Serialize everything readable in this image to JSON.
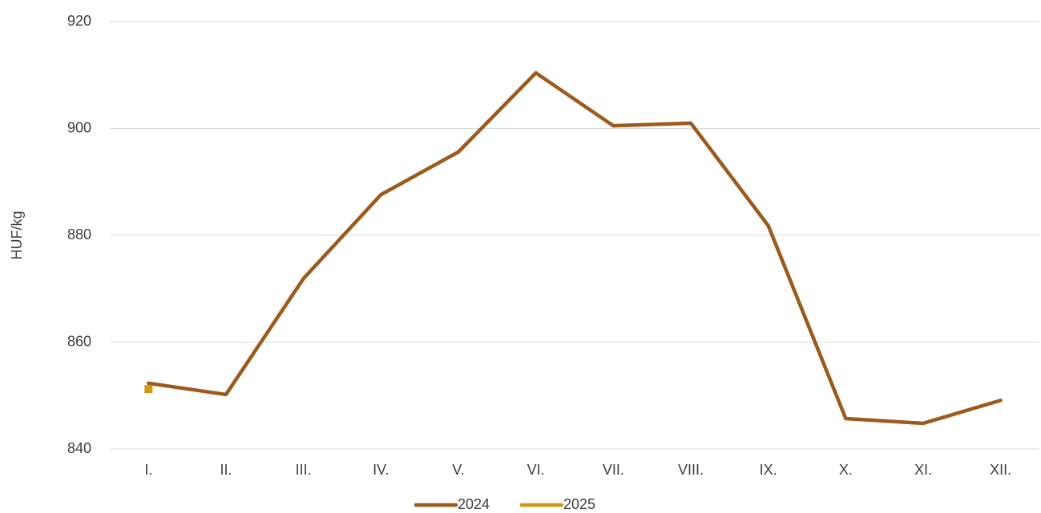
{
  "chart_data": {
    "type": "line",
    "y_label": "HUF/kg",
    "categories": [
      "I.",
      "II.",
      "III.",
      "IV.",
      "V.",
      "VI.",
      "VII.",
      "VIII.",
      "IX.",
      "X.",
      "XI.",
      "XII."
    ],
    "series": [
      {
        "name": "2024",
        "color": "#9c5a1c",
        "values": [
          852.3,
          850.2,
          871.9,
          887.6,
          895.6,
          910.4,
          900.5,
          901.0,
          881.8,
          845.7,
          844.8,
          849.1
        ]
      },
      {
        "name": "2025",
        "color": "#cc9a12",
        "values": [
          851.2,
          null,
          null,
          null,
          null,
          null,
          null,
          null,
          null,
          null,
          null,
          null
        ]
      }
    ],
    "ylim": [
      840,
      920
    ],
    "yticks": [
      840,
      860,
      880,
      900,
      920
    ],
    "grid": true,
    "legend": "bottom"
  }
}
